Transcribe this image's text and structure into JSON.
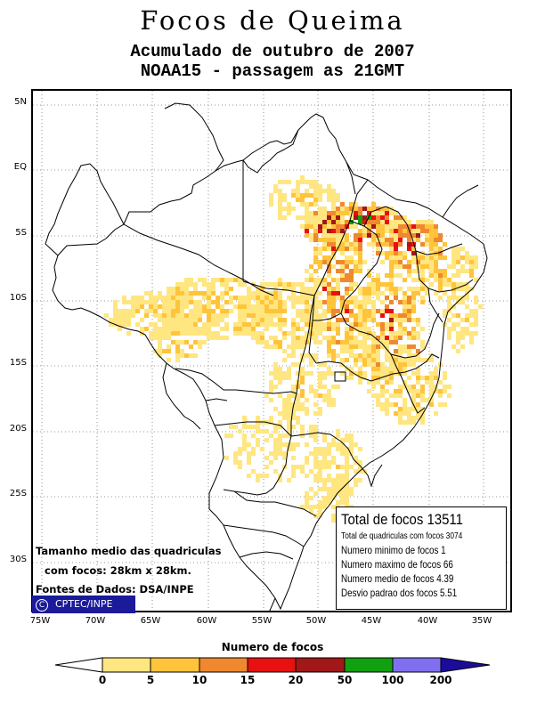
{
  "title": "Focos de Queima",
  "subtitle1": "Acumulado de outubro de 2007",
  "subtitle2": "NOAA15 - passagem as 21GMT",
  "lat_labels": [
    "5N",
    "EQ",
    "5S",
    "10S",
    "15S",
    "20S",
    "25S",
    "30S"
  ],
  "lon_labels": [
    "75W",
    "70W",
    "65W",
    "60W",
    "55W",
    "50W",
    "45W",
    "40W",
    "35W"
  ],
  "stats": {
    "total": "Total de focos 13511",
    "quadriculas": "Total de quadriculas com focos 3074",
    "minimo": "Numero minimo de focos 1",
    "maximo": "Numero maximo de focos 66",
    "medio": "Numero medio de focos 4.39",
    "desvio": "Desvio padrao dos focos 5.51"
  },
  "notes": {
    "line1": "Tamanho medio das quadriculas",
    "line2": "com focos: 28km x 28km.",
    "line3": "Fontes de Dados: DSA/INPE"
  },
  "credit": "CPTEC/INPE",
  "credit_symbol": "C",
  "legend": {
    "title": "Numero de focos",
    "labels": [
      "0",
      "5",
      "10",
      "15",
      "20",
      "50",
      "100",
      "200"
    ],
    "colors": [
      "#ffe680",
      "#ffc43c",
      "#f08830",
      "#e81010",
      "#a01818",
      "#10a010",
      "#8070f0",
      "#1c0c9c"
    ]
  }
}
